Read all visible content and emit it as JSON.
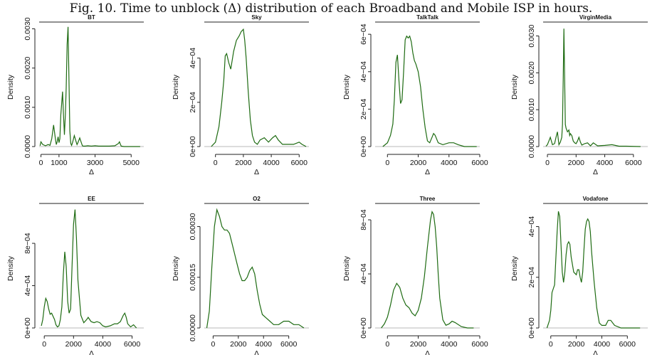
{
  "figure": {
    "caption": "Fig. 10.   Time to unblock (Δ) distribution of each Broadband and Mobile ISP in hours."
  },
  "colors": {
    "curve": "#1e6b12",
    "axis": "#222222",
    "zero_line": "#b8b8b8"
  },
  "chart_data": [
    {
      "type": "line",
      "title": "BT",
      "xlabel": "Δ",
      "ylabel": "Density",
      "xlim": [
        -100,
        5700
      ],
      "ylim": [
        0,
        0.0031
      ],
      "xticks": [
        0,
        1000,
        3000,
        5000
      ],
      "xtick_labels": [
        "0",
        "1000",
        "3000",
        "5000"
      ],
      "yticks": [
        0,
        0.001,
        0.002,
        0.003
      ],
      "ytick_labels": [
        "0.0000",
        "0.0010",
        "0.0020",
        "0.0030"
      ],
      "series": [
        {
          "x": [
            -50,
            0,
            100,
            250,
            400,
            500,
            600,
            700,
            800,
            850,
            900,
            950,
            1000,
            1050,
            1100,
            1200,
            1250,
            1300,
            1350,
            1400,
            1450,
            1500,
            1550,
            1600,
            1650,
            1700,
            1750,
            1850,
            1950,
            2000,
            2050,
            2150,
            2250,
            2300,
            2350,
            2450,
            2600,
            2800,
            3000,
            3200,
            3500,
            3800,
            4100,
            4300,
            4350,
            4400,
            4450,
            4600,
            5000,
            5500
          ],
          "y": [
            2e-05,
            0.00012,
            5e-05,
            2e-05,
            5e-05,
            3e-05,
            0.0002,
            0.00055,
            0.0002,
            5e-05,
            0.00012,
            0.00025,
            0.0001,
            0.0002,
            0.0008,
            0.0014,
            0.0008,
            0.0003,
            0.0008,
            0.0015,
            0.0026,
            0.00305,
            0.0018,
            0.0004,
            8e-05,
            3e-05,
            0.0001,
            0.00028,
            0.00012,
            5e-05,
            0.0001,
            0.00022,
            8e-05,
            2e-05,
            1e-05,
            1e-05,
            2e-05,
            1e-05,
            2e-05,
            1e-05,
            1e-05,
            1e-05,
            2e-05,
            8e-05,
            0.00012,
            6e-05,
            1e-05,
            0.0,
            0.0,
            0.0
          ]
        }
      ]
    },
    {
      "type": "line",
      "title": "Sky",
      "xlabel": "Δ",
      "ylabel": "Density",
      "xlim": [
        -800,
        6700
      ],
      "ylim": [
        0,
        0.00055
      ],
      "xticks": [
        0,
        2000,
        4000,
        6000
      ],
      "xtick_labels": [
        "0",
        "2000",
        "4000",
        "6000"
      ],
      "yticks": [
        0,
        0.0002,
        0.0004
      ],
      "ytick_labels": [
        "0e+00",
        "2e−04",
        "4e−04"
      ],
      "series": [
        {
          "x": [
            -300,
            0,
            250,
            450,
            600,
            700,
            800,
            950,
            1100,
            1300,
            1500,
            1700,
            1850,
            2000,
            2100,
            2200,
            2350,
            2500,
            2650,
            2800,
            3000,
            3200,
            3500,
            3800,
            4100,
            4300,
            4500,
            4800,
            5200,
            5600,
            6000,
            6200,
            6500
          ],
          "y": [
            0.0,
            2e-05,
            9e-05,
            0.0002,
            0.0003,
            0.00041,
            0.00042,
            0.00038,
            0.00035,
            0.00043,
            0.00048,
            0.0005,
            0.00052,
            0.00053,
            0.00048,
            0.0004,
            0.00025,
            0.00012,
            5e-05,
            2e-05,
            1e-05,
            3e-05,
            4e-05,
            2e-05,
            4e-05,
            5e-05,
            3e-05,
            1e-05,
            1e-05,
            1e-05,
            2e-05,
            1e-05,
            0.0
          ]
        }
      ]
    },
    {
      "type": "line",
      "title": "TalkTalk",
      "xlabel": "Δ",
      "ylabel": "Density",
      "xlim": [
        -800,
        6000
      ],
      "ylim": [
        0,
        0.00065
      ],
      "xticks": [
        0,
        2000,
        4000,
        6000
      ],
      "xtick_labels": [
        "0",
        "2000",
        "4000",
        "6000"
      ],
      "yticks": [
        0,
        0.0002,
        0.0004,
        0.0006
      ],
      "ytick_labels": [
        "0e+00",
        "2e−04",
        "4e−04",
        "6e−04"
      ],
      "series": [
        {
          "x": [
            -300,
            0,
            200,
            350,
            450,
            550,
            650,
            750,
            850,
            950,
            1050,
            1150,
            1250,
            1350,
            1450,
            1550,
            1650,
            1750,
            1850,
            2000,
            2150,
            2300,
            2450,
            2600,
            2750,
            2900,
            3000,
            3100,
            3300,
            3600,
            4000,
            4300,
            4600,
            5000,
            5800
          ],
          "y": [
            0.0,
            2e-05,
            6e-05,
            0.00012,
            0.00025,
            0.00045,
            0.00049,
            0.00035,
            0.00023,
            0.00025,
            0.0004,
            0.00057,
            0.00059,
            0.00058,
            0.00059,
            0.00056,
            0.0005,
            0.00046,
            0.00044,
            0.0004,
            0.00032,
            0.0002,
            0.0001,
            3e-05,
            2e-05,
            5e-05,
            7e-05,
            6e-05,
            2e-05,
            1e-05,
            2e-05,
            2e-05,
            1e-05,
            0.0,
            0.0
          ]
        }
      ]
    },
    {
      "type": "line",
      "title": "VirginMedia",
      "xlabel": "Δ",
      "ylabel": "Density",
      "xlim": [
        -300,
        7000
      ],
      "ylim": [
        0,
        0.0033
      ],
      "xticks": [
        0,
        2000,
        4000,
        6000
      ],
      "xtick_labels": [
        "0",
        "2000",
        "4000",
        "6000"
      ],
      "yticks": [
        0,
        0.001,
        0.002,
        0.003
      ],
      "ytick_labels": [
        "0.0000",
        "0.0010",
        "0.0020",
        "0.0030"
      ],
      "series": [
        {
          "x": [
            -100,
            0,
            100,
            200,
            350,
            500,
            600,
            700,
            800,
            900,
            1000,
            1050,
            1100,
            1150,
            1200,
            1250,
            1300,
            1400,
            1500,
            1550,
            1600,
            1700,
            1800,
            1900,
            2000,
            2100,
            2200,
            2300,
            2400,
            2600,
            2800,
            3000,
            3200,
            3500,
            4000,
            4500,
            5000,
            5500,
            6500
          ],
          "y": [
            1e-05,
            5e-05,
            0.00015,
            0.00025,
            5e-05,
            8e-05,
            0.00025,
            0.0004,
            5e-05,
            0.00012,
            0.00025,
            0.0006,
            0.0018,
            0.0032,
            0.0019,
            0.0006,
            0.0005,
            0.0004,
            0.00045,
            0.0003,
            0.00035,
            0.0003,
            0.00015,
            0.0001,
            8e-05,
            0.00015,
            0.00025,
            0.00012,
            4e-05,
            8e-05,
            0.0001,
            2e-05,
            0.0001,
            2e-05,
            3e-05,
            5e-05,
            1e-05,
            1e-05,
            0.0
          ]
        }
      ]
    },
    {
      "type": "line",
      "title": "EE",
      "xlabel": "Δ",
      "ylabel": "Density",
      "xlim": [
        -350,
        6800
      ],
      "ylim": [
        0,
        0.00115
      ],
      "xticks": [
        0,
        2000,
        4000,
        6000
      ],
      "xtick_labels": [
        "0",
        "2000",
        "4000",
        "6000"
      ],
      "yticks": [
        0,
        0.0004,
        0.0008
      ],
      "ytick_labels": [
        "0e+00",
        "4e−04",
        "8e−04"
      ],
      "series": [
        {
          "x": [
            -200,
            -100,
            0,
            100,
            200,
            300,
            400,
            500,
            700,
            800,
            900,
            1000,
            1100,
            1200,
            1300,
            1400,
            1500,
            1600,
            1700,
            1800,
            1900,
            2000,
            2100,
            2200,
            2300,
            2500,
            2700,
            2900,
            3000,
            3200,
            3400,
            3600,
            3800,
            4000,
            4200,
            4500,
            4800,
            5000,
            5200,
            5400,
            5500,
            5600,
            5700,
            5900,
            6100,
            6300
          ],
          "y": [
            2e-05,
            8e-05,
            0.0002,
            0.00028,
            0.00025,
            0.00018,
            0.00013,
            0.00014,
            8e-05,
            3e-05,
            1e-05,
            2e-05,
            8e-05,
            0.0002,
            0.0005,
            0.00072,
            0.00058,
            0.00025,
            0.00014,
            0.00018,
            0.0006,
            0.00098,
            0.00112,
            0.00085,
            0.00045,
            0.00012,
            5e-05,
            8e-05,
            0.0001,
            6e-05,
            5e-05,
            6e-05,
            5e-05,
            2e-05,
            1e-05,
            2e-05,
            4e-05,
            4e-05,
            6e-05,
            0.00012,
            0.00014,
            0.0001,
            4e-05,
            1e-05,
            3e-05,
            0.0
          ]
        }
      ]
    },
    {
      "type": "line",
      "title": "O2",
      "xlabel": "Δ",
      "ylabel": "Density",
      "xlim": [
        -700,
        7600
      ],
      "ylim": [
        0,
        0.00036
      ],
      "xticks": [
        0,
        2000,
        4000,
        6000
      ],
      "xtick_labels": [
        "0",
        "2000",
        "4000",
        "6000"
      ],
      "yticks": [
        0,
        0.00015,
        0.0003
      ],
      "ytick_labels": [
        "0.00000",
        "0.00015",
        "0.00030"
      ],
      "series": [
        {
          "x": [
            -500,
            -300,
            -100,
            100,
            300,
            500,
            700,
            900,
            1100,
            1300,
            1500,
            1700,
            1900,
            2100,
            2300,
            2500,
            2700,
            2900,
            3100,
            3300,
            3500,
            3700,
            3900,
            4200,
            4500,
            4800,
            5200,
            5600,
            6000,
            6400,
            6800,
            7200
          ],
          "y": [
            0.0,
            5e-05,
            0.00018,
            0.0003,
            0.00035,
            0.00033,
            0.0003,
            0.00029,
            0.00029,
            0.00028,
            0.00025,
            0.00022,
            0.00019,
            0.00016,
            0.00014,
            0.00014,
            0.00015,
            0.00017,
            0.00018,
            0.00016,
            0.00011,
            7e-05,
            4e-05,
            3e-05,
            2e-05,
            1e-05,
            1e-05,
            2e-05,
            2e-05,
            1e-05,
            1e-05,
            0.0
          ]
        }
      ]
    },
    {
      "type": "line",
      "title": "Three",
      "xlabel": "Δ",
      "ylabel": "Density",
      "xlim": [
        -800,
        6000
      ],
      "ylim": [
        0,
        0.0009
      ],
      "xticks": [
        0,
        2000,
        4000,
        6000
      ],
      "xtick_labels": [
        "0",
        "2000",
        "4000",
        "6000"
      ],
      "yticks": [
        0,
        0.0004,
        0.0008
      ],
      "ytick_labels": [
        "0e+00",
        "4e−04",
        "8e−04"
      ],
      "series": [
        {
          "x": [
            -400,
            -200,
            0,
            200,
            400,
            600,
            800,
            1000,
            1200,
            1400,
            1600,
            1800,
            2000,
            2200,
            2400,
            2600,
            2800,
            2900,
            3000,
            3100,
            3200,
            3300,
            3400,
            3600,
            3800,
            4000,
            4200,
            4400,
            4800,
            5200,
            5600
          ],
          "y": [
            0.0,
            3e-05,
            8e-05,
            0.00017,
            0.00028,
            0.00033,
            0.0003,
            0.00022,
            0.00017,
            0.00015,
            0.00011,
            9e-05,
            0.00013,
            0.00022,
            0.00038,
            0.0006,
            0.0008,
            0.00086,
            0.00084,
            0.00075,
            0.0006,
            0.0004,
            0.00022,
            6e-05,
            2e-05,
            3e-05,
            5e-05,
            4e-05,
            1e-05,
            0.0,
            0.0
          ]
        }
      ]
    },
    {
      "type": "line",
      "title": "Vodafone",
      "xlabel": "Δ",
      "ylabel": "Density",
      "xlim": [
        -600,
        7600
      ],
      "ylim": [
        0,
        0.00048
      ],
      "xticks": [
        0,
        2000,
        4000,
        6000
      ],
      "xtick_labels": [
        "0",
        "2000",
        "4000",
        "6000"
      ],
      "yticks": [
        0,
        0.0002,
        0.0004
      ],
      "ytick_labels": [
        "0e+00",
        "2e−04",
        "4e−04"
      ],
      "series": [
        {
          "x": [
            -300,
            -100,
            0,
            100,
            300,
            500,
            600,
            700,
            800,
            900,
            1000,
            1100,
            1200,
            1300,
            1400,
            1500,
            1600,
            1800,
            2000,
            2100,
            2200,
            2300,
            2400,
            2500,
            2600,
            2700,
            2800,
            2900,
            3000,
            3100,
            3200,
            3400,
            3600,
            3800,
            4000,
            4300,
            4500,
            4700,
            5000,
            5500,
            6000,
            7000
          ],
          "y": [
            0.0,
            3e-05,
            7e-05,
            0.00014,
            0.00017,
            0.00038,
            0.00046,
            0.00044,
            0.00033,
            0.00022,
            0.00018,
            0.00022,
            0.00029,
            0.00033,
            0.00034,
            0.00033,
            0.00028,
            0.00022,
            0.00021,
            0.00023,
            0.00023,
            0.0002,
            0.00018,
            0.00022,
            0.00031,
            0.00039,
            0.00042,
            0.00043,
            0.00042,
            0.00038,
            0.0003,
            0.00018,
            8e-05,
            2e-05,
            1e-05,
            1e-05,
            3e-05,
            3e-05,
            1e-05,
            0.0,
            0.0,
            0.0
          ]
        }
      ]
    }
  ]
}
